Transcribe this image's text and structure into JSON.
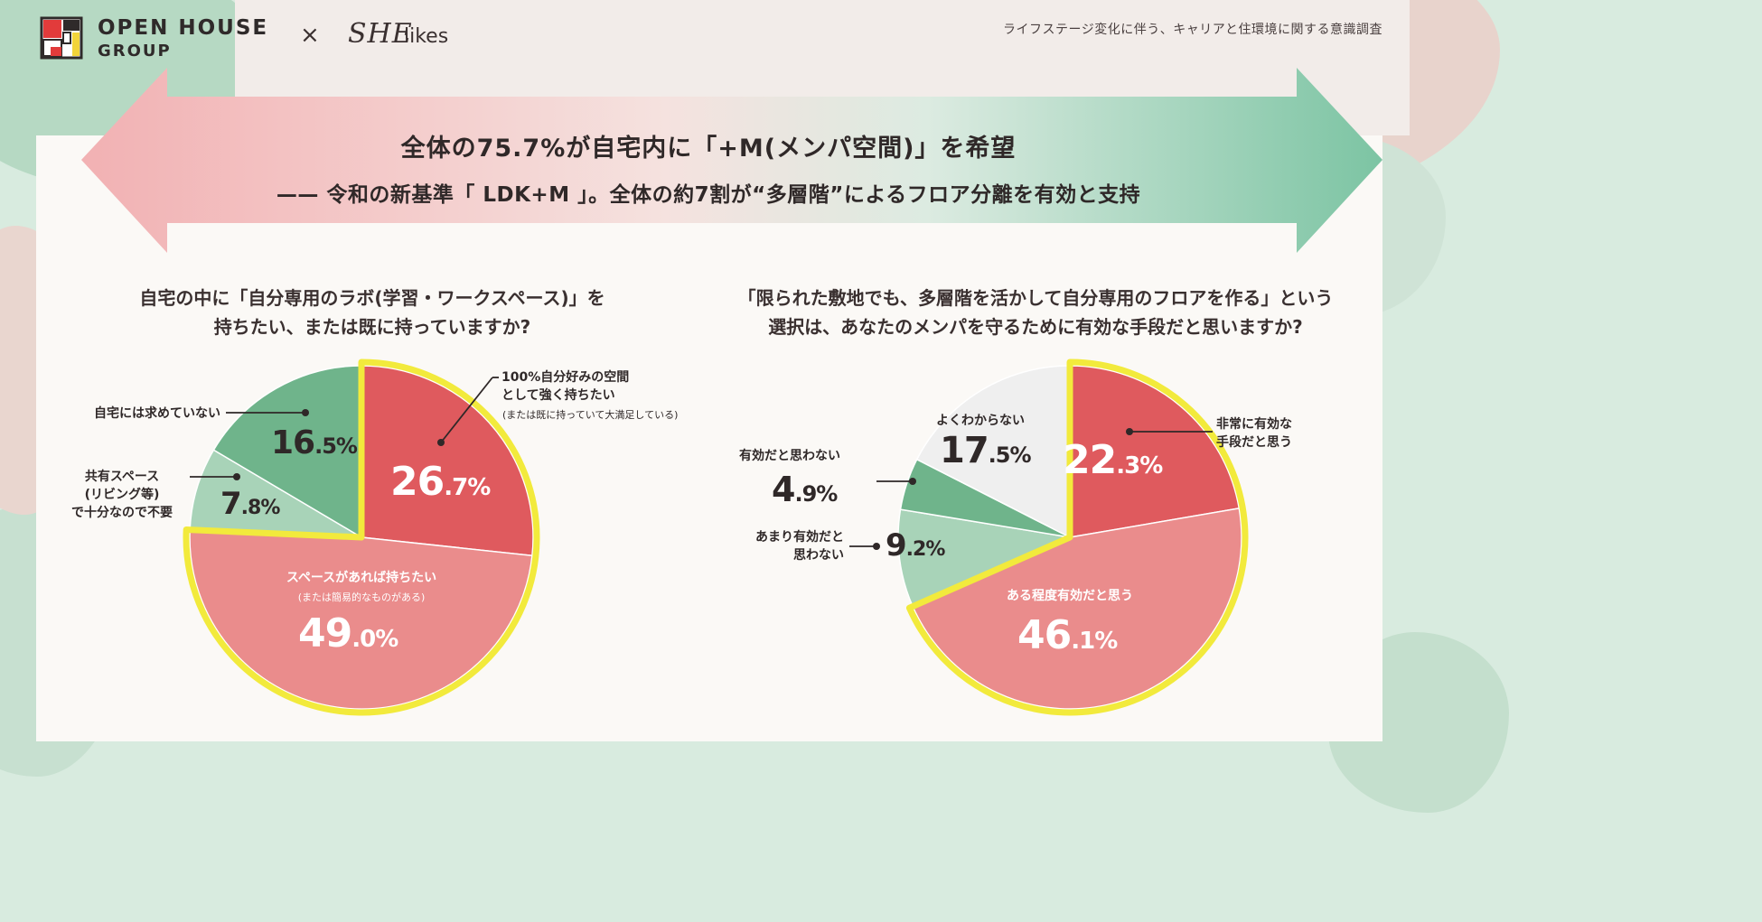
{
  "header": {
    "brand_line_1": "OPEN HOUSE",
    "brand_line_2": "GROUP",
    "cross": "×",
    "partner_script": "SHE",
    "partner_word": "likes",
    "survey_title": "ライフステージ変化に伴う、キャリアと住環境に関する意識調査"
  },
  "banner": {
    "headline": "全体の75.7%が自宅内に「+M(メンパ空間)」を希望",
    "subheadline": "—— 令和の新基準「 LDK+M 」。全体の約7割が“多層階”によるフロア分離を有効と支持"
  },
  "colors": {
    "red_dark": "#df5a5e",
    "red_light": "#ea8c8c",
    "green_dark": "#6fb48b",
    "green_light": "#a8d3b8",
    "gray": "#efefef",
    "highlight": "#f2ea3c"
  },
  "chart_data": [
    {
      "type": "pie",
      "title": "自宅の中に「自分専用のラボ(学習・ワークスペース)」を 持ちたい、または既に持っていますか?",
      "title_lines": [
        "自宅の中に「自分専用のラボ(学習・ワークスペース)」を",
        "持ちたい、または既に持っていますか?"
      ],
      "slices": [
        {
          "label": "100%自分好みの空間 として強く持ちたい",
          "label_lines": [
            "100%自分好みの空間",
            "として強く持ちたい"
          ],
          "note": "(または既に持っていて大満足している)",
          "value": 26.7,
          "int": "26",
          "dec": ".7%"
        },
        {
          "label": "スペースがあれば持ちたい",
          "label_lines": [
            "スペースがあれば持ちたい"
          ],
          "note": "(または簡易的なものがある)",
          "value": 49.0,
          "int": "49",
          "dec": ".0%"
        },
        {
          "label": "共有スペース (リビング等) で十分なので不要",
          "label_lines": [
            "共有スペース",
            "(リビング等)",
            "で十分なので不要"
          ],
          "value": 7.8,
          "int": "7",
          "dec": ".8%"
        },
        {
          "label": "自宅には求めていない",
          "label_lines": [
            "自宅には求めていない"
          ],
          "value": 16.5,
          "int": "16",
          "dec": ".5%"
        }
      ],
      "highlighted": [
        "100%自分好みの空間 として強く持ちたい",
        "スペースがあれば持ちたい"
      ]
    },
    {
      "type": "pie",
      "title": "「限られた敷地でも、多層階を活かして自分専用のフロアを作る」という 選択は、あなたのメンパを守るために有効な手段だと思いますか?",
      "title_lines": [
        "「限られた敷地でも、多層階を活かして自分専用のフロアを作る」という",
        "選択は、あなたのメンパを守るために有効な手段だと思いますか?"
      ],
      "slices": [
        {
          "label": "非常に有効な 手段だと思う",
          "label_lines": [
            "非常に有効な",
            "手段だと思う"
          ],
          "value": 22.3,
          "int": "22",
          "dec": ".3%"
        },
        {
          "label": "ある程度有効だと思う",
          "label_lines": [
            "ある程度有効だと思う"
          ],
          "value": 46.1,
          "int": "46",
          "dec": ".1%"
        },
        {
          "label": "あまり有効だと 思わない",
          "label_lines": [
            "あまり有効だと",
            "思わない"
          ],
          "value": 9.2,
          "int": "9",
          "dec": ".2%"
        },
        {
          "label": "有効だと思わない",
          "label_lines": [
            "有効だと思わない"
          ],
          "value": 4.9,
          "int": "4",
          "dec": ".9%"
        },
        {
          "label": "よくわからない",
          "label_lines": [
            "よくわからない"
          ],
          "value": 17.5,
          "int": "17",
          "dec": ".5%"
        }
      ],
      "highlighted": [
        "非常に有効な 手段だと思う",
        "ある程度有効だと思う"
      ]
    }
  ]
}
